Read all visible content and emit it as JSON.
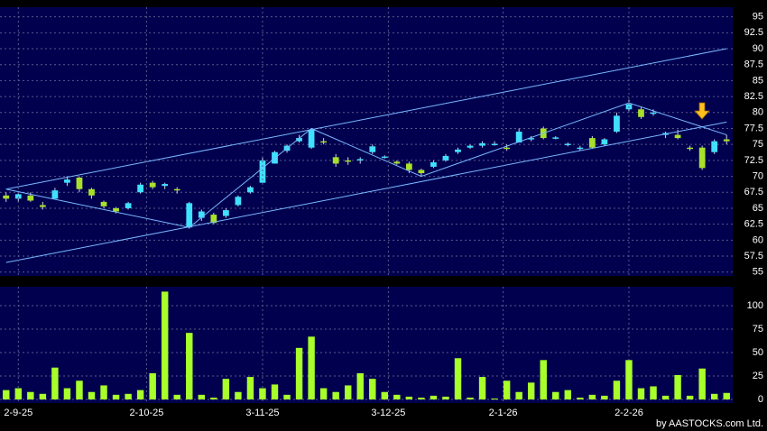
{
  "chart_data": [
    {
      "type": "candlestick",
      "up_color": "#40e0ff",
      "down_color": "#a8e02a",
      "grid": true,
      "xlim": [
        -0.5,
        59.5
      ],
      "ylim": [
        54.4,
        96.5
      ],
      "yticks": [
        55,
        57.5,
        60,
        62.5,
        65,
        67.5,
        70,
        72.5,
        75,
        77.5,
        80,
        82.5,
        85,
        87.5,
        90,
        92.5,
        95
      ],
      "open": [
        67,
        66.5,
        67,
        65.5,
        66.5,
        69,
        69.8,
        68,
        66,
        65,
        65,
        67.5,
        69,
        68.5,
        68,
        62,
        63.5,
        64,
        63.8,
        65.5,
        67.5,
        69,
        72,
        74,
        75.5,
        74.5,
        75.5,
        73,
        72.5,
        72.5,
        73.8,
        73,
        72.3,
        72,
        71,
        71.5,
        72.5,
        73.8,
        74.5,
        74.8,
        75,
        74.5,
        75.3,
        75.8,
        77.5,
        76,
        75,
        74.3,
        76,
        75,
        77,
        80.5,
        80.5,
        79.8,
        76.5,
        76.5,
        74.5,
        74.5,
        73.8,
        75.8
      ],
      "high": [
        67.5,
        67.5,
        67.5,
        66,
        68.2,
        70,
        70,
        68.2,
        66.2,
        65.2,
        66,
        69,
        69.3,
        69,
        68.3,
        66,
        64.8,
        64.3,
        65,
        67,
        68.5,
        73,
        74,
        75,
        76.5,
        77.5,
        76,
        73.5,
        73,
        73,
        75,
        73.3,
        72.5,
        72.3,
        71.2,
        72.5,
        73.5,
        74.5,
        75,
        75.5,
        75.5,
        75,
        77.5,
        76.3,
        77.8,
        76.3,
        75.3,
        74.8,
        76.3,
        76,
        80,
        82,
        80.8,
        80.5,
        77,
        77.3,
        74.8,
        74.8,
        75.8,
        76.5
      ],
      "low": [
        66,
        66,
        66,
        64.8,
        66.5,
        68.5,
        67.5,
        66.5,
        65,
        64.2,
        64.8,
        67.3,
        68,
        68,
        67.3,
        61.8,
        63,
        62.5,
        63.5,
        65.3,
        67.3,
        69,
        72,
        73.7,
        75.3,
        74.3,
        75,
        71.5,
        71.8,
        72,
        73.5,
        72.8,
        71.8,
        70.5,
        70,
        71.3,
        72.3,
        73.5,
        74.3,
        74.5,
        74.8,
        74,
        75.3,
        75.5,
        75.8,
        75.8,
        74.7,
        74,
        74.3,
        74.8,
        76.8,
        80,
        79,
        79.5,
        76,
        75.8,
        74,
        71,
        73.5,
        75
      ],
      "close": [
        66.5,
        67.2,
        66.2,
        65.2,
        67.8,
        69.5,
        68,
        67,
        65.3,
        64.5,
        65.8,
        68.7,
        68.3,
        68.8,
        67.8,
        65.8,
        64.5,
        62.7,
        64.7,
        66.8,
        68.3,
        72.5,
        73.8,
        74.8,
        76,
        77.3,
        75.3,
        72,
        72.3,
        72.7,
        74.7,
        73.1,
        72,
        71,
        70.5,
        72.2,
        73.2,
        74.2,
        74.8,
        75.2,
        75.1,
        74.3,
        77,
        76,
        76,
        76.1,
        75.1,
        74.5,
        74.5,
        75.8,
        79.5,
        81.3,
        79.3,
        80,
        76.8,
        76,
        74.3,
        71.3,
        75.5,
        75.5
      ],
      "trendlines": [
        {
          "color": "#7ab8ff",
          "x": [
            0,
            59
          ],
          "y": [
            68,
            90
          ]
        },
        {
          "color": "#7ab8ff",
          "x": [
            0,
            59
          ],
          "y": [
            56.5,
            78.5
          ]
        },
        {
          "color": "#7ab8ff",
          "x": [
            0,
            15,
            25,
            34,
            51,
            59
          ],
          "y": [
            68,
            62,
            77.5,
            70,
            81.5,
            76.5
          ]
        }
      ]
    },
    {
      "type": "bar",
      "color": "#a8ff2a",
      "grid": true,
      "xlim": [
        -0.5,
        59.5
      ],
      "ylim": [
        -3.8,
        120.2
      ],
      "yticks": [
        0,
        25,
        50,
        75,
        100
      ],
      "xticks": [
        {
          "value": 1,
          "label": "2-9-25"
        },
        {
          "value": 11.5,
          "label": "2-10-25"
        },
        {
          "value": 21,
          "label": "3-11-25"
        },
        {
          "value": 31.3,
          "label": "3-12-25"
        },
        {
          "value": 40.7,
          "label": "2-1-26"
        },
        {
          "value": 51,
          "label": "2-2-26"
        }
      ],
      "values": [
        10,
        12,
        8,
        6,
        34,
        12,
        20,
        8,
        15,
        5,
        6,
        10,
        28,
        115,
        5,
        71,
        5,
        2,
        22,
        8,
        24,
        12,
        16,
        5,
        55,
        67,
        12,
        8,
        15,
        28,
        22,
        8,
        5,
        3,
        2,
        4,
        3,
        44,
        2,
        24,
        1,
        20,
        8,
        18,
        42,
        8,
        10,
        2,
        5,
        4,
        20,
        42,
        12,
        14,
        4,
        26,
        4,
        33,
        6,
        7
      ]
    },
    {
      "copyright": "by AASTOCKS.com Ltd."
    }
  ]
}
